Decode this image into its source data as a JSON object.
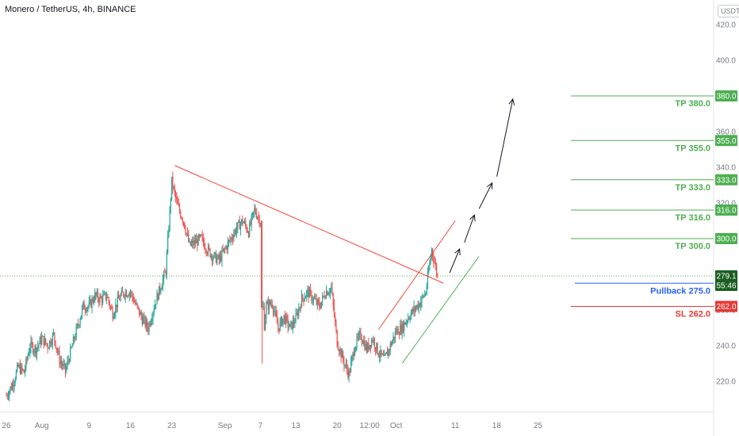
{
  "header": {
    "symbol_title": "Monero / TetherUS, 4h, BINANCE",
    "currency_button": "USDT"
  },
  "colors": {
    "up": "#26a69a",
    "down": "#ef5350",
    "tp_green": "#4caf50",
    "sl_red": "#e53935",
    "pullback_blue": "#2962ff",
    "price_line": "#4caf50",
    "trendline": "#f44336"
  },
  "chart_data": {
    "type": "candlestick",
    "title": "Monero / TetherUS, 4h, BINANCE",
    "ylim": [
      210,
      420
    ],
    "y_ticks": [
      220.0,
      240.0,
      260.0,
      280.0,
      300.0,
      320.0,
      340.0,
      360.0,
      380.0,
      400.0,
      420.0
    ],
    "x_ticks": [
      {
        "label": "26",
        "day": 0
      },
      {
        "label": "Aug",
        "day": 6
      },
      {
        "label": "9",
        "day": 14
      },
      {
        "label": "16",
        "day": 21
      },
      {
        "label": "23",
        "day": 28
      },
      {
        "label": "Sep",
        "day": 37
      },
      {
        "label": "7",
        "day": 43
      },
      {
        "label": "13",
        "day": 49
      },
      {
        "label": "20",
        "day": 56
      },
      {
        "label": "12:00",
        "day": 61.5
      },
      {
        "label": "Oct",
        "day": 66
      },
      {
        "label": "11",
        "day": 76
      },
      {
        "label": "18",
        "day": 83
      },
      {
        "label": "25",
        "day": 90
      }
    ],
    "price_path": [
      [
        0,
        212
      ],
      [
        1,
        218
      ],
      [
        2,
        228
      ],
      [
        3,
        225
      ],
      [
        4,
        240
      ],
      [
        5,
        238
      ],
      [
        6,
        244
      ],
      [
        7,
        240
      ],
      [
        8,
        246
      ],
      [
        9,
        232
      ],
      [
        10,
        226
      ],
      [
        11,
        238
      ],
      [
        12,
        250
      ],
      [
        13,
        262
      ],
      [
        14,
        262
      ],
      [
        15,
        268
      ],
      [
        16,
        266
      ],
      [
        17,
        268
      ],
      [
        18,
        258
      ],
      [
        19,
        266
      ],
      [
        20,
        270
      ],
      [
        21,
        270
      ],
      [
        22,
        262
      ],
      [
        23,
        255
      ],
      [
        24,
        250
      ],
      [
        25,
        262
      ],
      [
        26,
        272
      ],
      [
        27,
        282
      ],
      [
        28,
        332
      ],
      [
        29,
        318
      ],
      [
        30,
        310
      ],
      [
        31,
        296
      ],
      [
        32,
        298
      ],
      [
        33,
        300
      ],
      [
        34,
        294
      ],
      [
        35,
        290
      ],
      [
        36,
        288
      ],
      [
        37,
        294
      ],
      [
        38,
        300
      ],
      [
        39,
        306
      ],
      [
        40,
        310
      ],
      [
        41,
        304
      ],
      [
        42,
        316
      ],
      [
        43,
        310
      ],
      [
        43.3,
        240
      ],
      [
        44,
        262
      ],
      [
        45,
        264
      ],
      [
        46,
        250
      ],
      [
        47,
        256
      ],
      [
        48,
        250
      ],
      [
        49,
        255
      ],
      [
        50,
        266
      ],
      [
        51,
        270
      ],
      [
        52,
        266
      ],
      [
        53,
        262
      ],
      [
        54,
        270
      ],
      [
        55,
        272
      ],
      [
        56,
        242
      ],
      [
        57,
        232
      ],
      [
        58,
        224
      ],
      [
        59,
        240
      ],
      [
        60,
        246
      ],
      [
        61,
        238
      ],
      [
        62,
        244
      ],
      [
        63,
        236
      ],
      [
        64,
        232
      ],
      [
        65,
        240
      ],
      [
        66,
        248
      ],
      [
        67,
        250
      ],
      [
        68,
        256
      ],
      [
        69,
        260
      ],
      [
        70,
        264
      ],
      [
        71,
        270
      ],
      [
        72,
        294
      ],
      [
        73,
        279
      ]
    ],
    "current_price": 279.1,
    "countdown": "55:46",
    "trendlines": [
      {
        "name": "descending-resistance",
        "from": [
          28.5,
          341
        ],
        "to": [
          74,
          275
        ]
      },
      {
        "name": "channel-upper",
        "from": [
          63,
          249
        ],
        "to": [
          76,
          310
        ]
      },
      {
        "name": "channel-lower",
        "from": [
          67,
          230
        ],
        "to": [
          80,
          290
        ]
      }
    ],
    "arrow_path": [
      [
        74.5,
        279
      ],
      [
        77,
        296
      ],
      [
        79.5,
        315
      ],
      [
        82.5,
        333
      ],
      [
        86,
        380
      ]
    ],
    "levels": [
      {
        "name": "tp-380",
        "price": 380.0,
        "label": "TP 380.0",
        "badge": "380.0",
        "kind": "tp"
      },
      {
        "name": "tp-355",
        "price": 355.0,
        "label": "TP 355.0",
        "badge": "355.0",
        "kind": "tp"
      },
      {
        "name": "tp-333",
        "price": 333.0,
        "label": "TP 333.0",
        "badge": "333.0",
        "kind": "tp"
      },
      {
        "name": "tp-316",
        "price": 316.0,
        "label": "TP 316.0",
        "badge": "316.0",
        "kind": "tp"
      },
      {
        "name": "tp-300",
        "price": 300.0,
        "label": "TP 300.0",
        "badge": "300.0",
        "kind": "tp"
      },
      {
        "name": "pullback-275",
        "price": 275.0,
        "label": "Pullback 275.0",
        "badge": "275.0",
        "kind": "pullback"
      },
      {
        "name": "sl-262",
        "price": 262.0,
        "label": "SL 262.0",
        "badge": "262.0",
        "kind": "sl"
      }
    ]
  }
}
